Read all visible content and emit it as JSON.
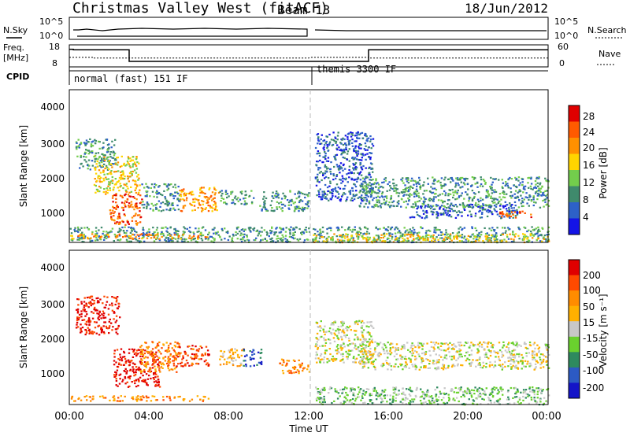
{
  "header": {
    "title": "Christmas Valley West (fitACF)",
    "beam": "Beam 13",
    "date": "18/Jun/2012"
  },
  "status_panels": {
    "nsky_label": "N.Sky",
    "nsearch_label": "N.Search",
    "nsky_ticks": [
      "10^5",
      "10^0"
    ],
    "nsearch_ticks": [
      "10^5",
      "10^0"
    ],
    "freq_label": [
      "Freq.",
      "[MHz]"
    ],
    "freq_ticks": [
      "18",
      "8"
    ],
    "nave_label": "Nave",
    "nave_ticks": [
      "60",
      "0"
    ],
    "cpid_label": "CPID",
    "cpid_segments": [
      {
        "label": "normal (fast) 151 IF",
        "start": 0,
        "end": 12
      },
      {
        "label": "themis 3300 IF",
        "start": 12,
        "end": 24
      }
    ],
    "freq_series_mhz": {
      "x": [
        0,
        0.2,
        0.2,
        3,
        3,
        12,
        12.1,
        12.1,
        15,
        15,
        24
      ],
      "y": [
        16,
        16,
        15.8,
        15.8,
        10.5,
        10.5,
        10.5,
        10.5,
        10.5,
        15.8,
        15.8
      ]
    },
    "nave_series": {
      "x": [
        0,
        1.2,
        1.2,
        3,
        3,
        12,
        12.1,
        15,
        15,
        24
      ],
      "y": [
        26,
        26,
        24,
        24,
        24,
        24,
        26,
        26,
        24,
        24
      ]
    }
  },
  "chart_data": [
    {
      "type": "heatmap",
      "name": "power",
      "ylabel": "Slant Range [km]",
      "yticks": [
        "4000",
        "3000",
        "2000",
        "1000"
      ],
      "ylim": [
        180,
        4600
      ],
      "xlim": [
        0,
        24
      ],
      "colorbar_label": "Power [dB]",
      "colorbar_ticks": [
        "28",
        "24",
        "20",
        "16",
        "12",
        "8",
        "4"
      ],
      "colorbar_colors": [
        "#1414e6",
        "#2d61c8",
        "#3f8a6c",
        "#73cd4c",
        "#ffd400",
        "#ff9000",
        "#ff5a00",
        "#e00000"
      ],
      "regions": [
        {
          "t0": 0.3,
          "t1": 2.3,
          "r0": 2300,
          "r1": 3200,
          "level": 2
        },
        {
          "t0": 1.2,
          "t1": 3.5,
          "r0": 1600,
          "r1": 2700,
          "level": 4
        },
        {
          "t0": 2.0,
          "t1": 3.6,
          "r0": 700,
          "r1": 1600,
          "level": 6
        },
        {
          "t0": 3.6,
          "t1": 5.5,
          "r0": 1100,
          "r1": 1900,
          "level": 2
        },
        {
          "t0": 5.5,
          "t1": 7.5,
          "r0": 1100,
          "r1": 1800,
          "level": 5
        },
        {
          "t0": 7.5,
          "t1": 9.2,
          "r0": 1300,
          "r1": 1700,
          "level": 2
        },
        {
          "t0": 9.5,
          "t1": 12,
          "r0": 1100,
          "r1": 1700,
          "level": 2
        },
        {
          "t0": 12.3,
          "t1": 15.2,
          "r0": 1400,
          "r1": 3400,
          "level": 1
        },
        {
          "t0": 14.5,
          "t1": 24,
          "r0": 1200,
          "r1": 2100,
          "level": 2
        },
        {
          "t0": 17.0,
          "t1": 22.5,
          "r0": 900,
          "r1": 1300,
          "level": 1
        },
        {
          "t0": 21.5,
          "t1": 23.2,
          "r0": 900,
          "r1": 1100,
          "level": 6
        },
        {
          "t0": 0,
          "t1": 24,
          "r0": 200,
          "r1": 650,
          "level": 2
        },
        {
          "t0": 0,
          "t1": 7,
          "r0": 300,
          "r1": 450,
          "level": 5
        },
        {
          "t0": 12.2,
          "t1": 24,
          "r0": 200,
          "r1": 450,
          "level": 4
        }
      ]
    },
    {
      "type": "heatmap",
      "name": "velocity",
      "ylabel": "Slant Range [km]",
      "yticks": [
        "4000",
        "3000",
        "2000",
        "1000"
      ],
      "ylim": [
        180,
        4600
      ],
      "xlim": [
        0,
        24
      ],
      "xticks": [
        "00:00",
        "04:00",
        "08:00",
        "12:00",
        "16:00",
        "20:00",
        "00:00"
      ],
      "xlabel": "Time UT",
      "colorbar_label": "Velocity [m s⁻¹]",
      "colorbar_ticks": [
        "200",
        "100",
        "50",
        "15",
        "-15",
        "-50",
        "-100",
        "-200"
      ],
      "colorbar_colors": [
        "#e00000",
        "#ff4a00",
        "#ff8c00",
        "#ffb000",
        "#c8c8c8",
        "#6ad12e",
        "#2e8a5e",
        "#2c5ac4",
        "#1414c8"
      ],
      "regions": [
        {
          "t0": 0.3,
          "t1": 2.5,
          "r0": 2200,
          "r1": 3300,
          "level": 0
        },
        {
          "t0": 2.2,
          "t1": 4.5,
          "r0": 700,
          "r1": 1800,
          "level": 0
        },
        {
          "t0": 3.5,
          "t1": 5.5,
          "r0": 1100,
          "r1": 2000,
          "level": 2
        },
        {
          "t0": 5.3,
          "t1": 7.0,
          "r0": 1300,
          "r1": 1900,
          "level": 1
        },
        {
          "t0": 7.5,
          "t1": 8.7,
          "r0": 1300,
          "r1": 1800,
          "level": 3
        },
        {
          "t0": 8.7,
          "t1": 9.6,
          "r0": 1300,
          "r1": 1800,
          "level": 7
        },
        {
          "t0": 10.5,
          "t1": 12,
          "r0": 1100,
          "r1": 1500,
          "level": 2
        },
        {
          "t0": 12.3,
          "t1": 15.2,
          "r0": 1400,
          "r1": 2600,
          "level": 4
        },
        {
          "t0": 14.5,
          "t1": 24,
          "r0": 1200,
          "r1": 2000,
          "level": 4
        },
        {
          "t0": 12.2,
          "t1": 24,
          "r0": 200,
          "r1": 700,
          "level": 5
        },
        {
          "t0": 0,
          "t1": 7,
          "r0": 300,
          "r1": 450,
          "level": 2
        }
      ]
    }
  ]
}
